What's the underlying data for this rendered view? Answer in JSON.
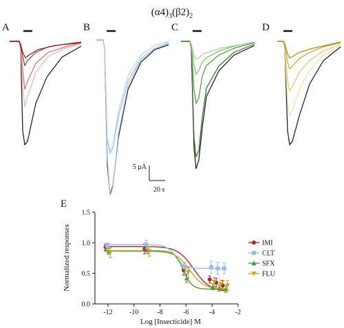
{
  "figure": {
    "title_main": "(α4)",
    "title_sub1": "3",
    "title_mid": "(β2)",
    "title_sub2": "2",
    "scale_current": "5 μA",
    "scale_time": "20 s",
    "colors": {
      "control": "#111111",
      "IMI": "#a12b2b",
      "CLT": "#9dbde6",
      "SFX": "#4e9a3a",
      "FLU": "#c9a227"
    }
  },
  "panels": [
    {
      "letter": "A",
      "color": "#a12b2b"
    },
    {
      "letter": "B",
      "color": "#9dbde6"
    },
    {
      "letter": "C",
      "color": "#4e9a3a"
    },
    {
      "letter": "D",
      "color": "#c9a227"
    }
  ],
  "chart_data": {
    "panel_letter": "E",
    "type": "line",
    "xlabel": "Log [Insecticide] M",
    "ylabel": "Normalized responses",
    "xlim": [
      -13,
      -2
    ],
    "ylim": [
      0,
      1.5
    ],
    "xticks": [
      -12,
      -10,
      -8,
      -6,
      -4,
      -2
    ],
    "yticks": [
      0.0,
      0.5,
      1.0,
      1.5
    ],
    "xtick_labels": [
      "-12",
      "-10",
      "-8",
      "-6",
      "-4",
      "-2"
    ],
    "ytick_labels": [
      "0.0",
      "0.5",
      "1.0",
      "1.5"
    ],
    "x": [
      -12,
      -9,
      -6,
      -4,
      -3.5,
      -3
    ],
    "legend_position": "right",
    "series": [
      {
        "name": "IMI",
        "color": "#a12b2b",
        "marker": "circle",
        "values": [
          0.93,
          0.9,
          0.55,
          0.4,
          0.35,
          0.3
        ],
        "errors": [
          0.05,
          0.08,
          0.08,
          0.06,
          0.07,
          0.08
        ],
        "fit": {
          "top": 0.94,
          "bottom": 0.2,
          "logEC50": -5.4,
          "hill": 0.7
        }
      },
      {
        "name": "CLT",
        "color": "#9dbde6",
        "marker": "square",
        "values": [
          0.96,
          0.97,
          0.6,
          0.6,
          0.58,
          0.58
        ],
        "errors": [
          0.04,
          0.07,
          0.08,
          0.1,
          0.1,
          0.09
        ],
        "fit": {
          "top": 0.97,
          "bottom": 0.58,
          "logEC50": -6.8,
          "hill": 1.2
        }
      },
      {
        "name": "SFX",
        "color": "#4e9a3a",
        "marker": "triangle-up",
        "values": [
          0.86,
          0.88,
          0.42,
          0.28,
          0.26,
          0.24
        ],
        "errors": [
          0.05,
          0.06,
          0.07,
          0.05,
          0.05,
          0.05
        ],
        "fit": {
          "top": 0.87,
          "bottom": 0.24,
          "logEC50": -6.2,
          "hill": 1.3
        }
      },
      {
        "name": "FLU",
        "color": "#c9a227",
        "marker": "triangle-down",
        "values": [
          0.84,
          0.86,
          0.52,
          0.36,
          0.32,
          0.3
        ],
        "errors": [
          0.08,
          0.08,
          0.09,
          0.07,
          0.07,
          0.08
        ],
        "fit": {
          "top": 0.86,
          "bottom": 0.24,
          "logEC50": -5.7,
          "hill": 0.8
        }
      }
    ]
  }
}
